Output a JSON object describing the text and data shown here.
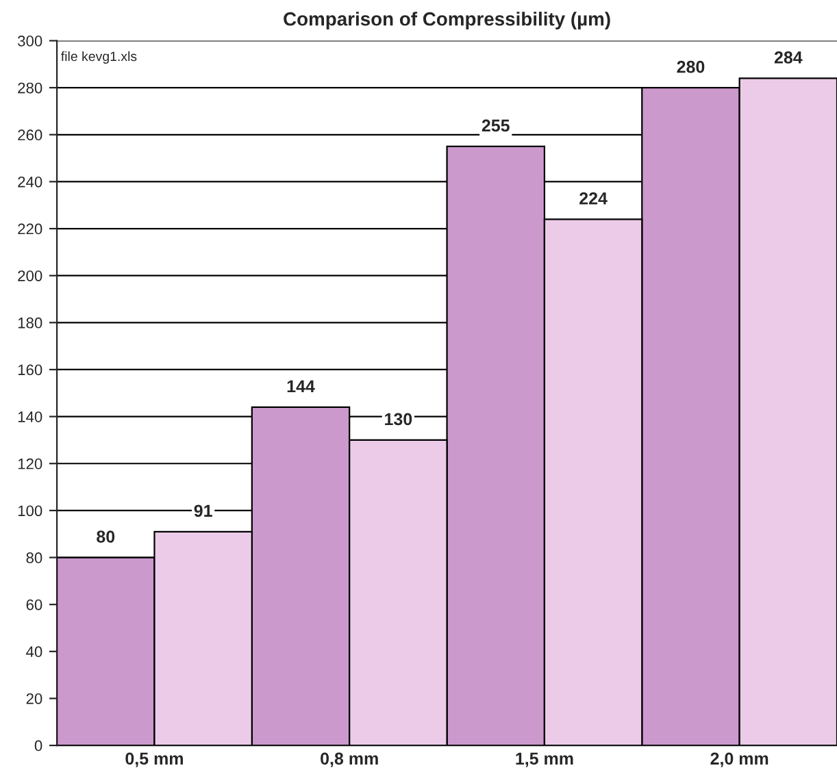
{
  "chart_data": {
    "type": "bar",
    "title": "Comparison of Compressibility (µm)",
    "categories": [
      "0,5 mm",
      "0,8 mm",
      "1,5 mm",
      "2,0 mm"
    ],
    "series": [
      {
        "color": "#cc99cc",
        "values": [
          80,
          144,
          255,
          280
        ]
      },
      {
        "color": "#eccbe8",
        "values": [
          91,
          130,
          224,
          284
        ]
      }
    ],
    "ylim": [
      0,
      300
    ],
    "yticks": [
      0,
      20,
      40,
      60,
      80,
      100,
      120,
      140,
      160,
      180,
      200,
      220,
      240,
      260,
      280,
      300
    ],
    "grid": "y",
    "data_labels": true,
    "legend": false,
    "annotations": [
      "file kevg1.xls"
    ]
  }
}
